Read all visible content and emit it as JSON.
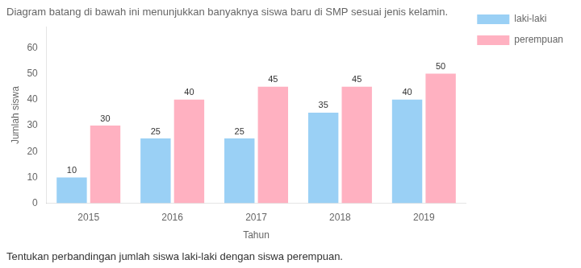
{
  "chart_data": {
    "type": "bar",
    "title": "Diagram batang di bawah ini menunjukkan banyaknya siswa baru di SMP sesuai jenis kelamin.",
    "footer": "Tentukan perbandingan jumlah siswa laki-laki dengan siswa perempuan.",
    "x_label": "Tahun",
    "y_label": "Jumlah siswa",
    "categories": [
      "2015",
      "2016",
      "2017",
      "2018",
      "2019"
    ],
    "series": [
      {
        "name": "laki-laki",
        "values": [
          10,
          25,
          25,
          35,
          40
        ]
      },
      {
        "name": "perempuan",
        "values": [
          30,
          40,
          45,
          45,
          50
        ]
      }
    ],
    "ylim": [
      0,
      68
    ],
    "yticks": [
      0,
      10,
      20,
      30,
      40,
      50,
      60
    ],
    "grid": false,
    "legend": "right",
    "data_labels": true
  }
}
